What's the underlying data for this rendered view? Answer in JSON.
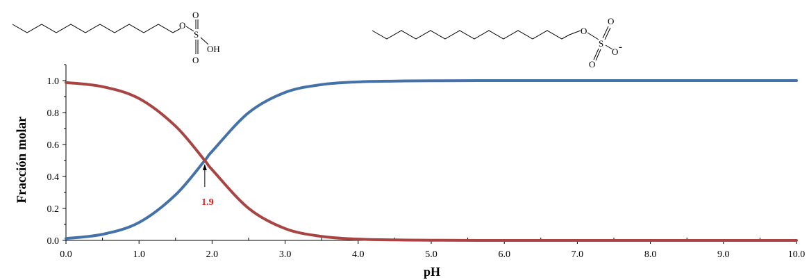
{
  "chart_data": {
    "type": "line",
    "xlabel": "pH",
    "ylabel": "Fracción molar",
    "xlim": [
      0,
      10
    ],
    "ylim": [
      0,
      1.1
    ],
    "x_ticks": [
      "0.0",
      "1.0",
      "2.0",
      "3.0",
      "4.0",
      "5.0",
      "6.0",
      "7.0",
      "8.0",
      "9.0",
      "10.0"
    ],
    "y_ticks": [
      "0.0",
      "0.2",
      "0.4",
      "0.6",
      "0.8",
      "1.0"
    ],
    "pKa": 1.9,
    "grid": false,
    "series": [
      {
        "color": "#4472a8",
        "x": [
          0.0,
          0.5,
          1.0,
          1.5,
          1.9,
          2.0,
          2.5,
          3.0,
          3.5,
          4.0,
          4.5,
          5.0,
          6.0,
          7.0,
          8.0,
          9.0,
          10.0
        ],
        "values": [
          0.012,
          0.038,
          0.112,
          0.285,
          0.5,
          0.557,
          0.799,
          0.926,
          0.975,
          0.992,
          0.997,
          0.999,
          1.0,
          1.0,
          1.0,
          1.0,
          1.0
        ]
      },
      {
        "color": "#a84543",
        "x": [
          0.0,
          0.5,
          1.0,
          1.5,
          1.9,
          2.0,
          2.5,
          3.0,
          3.5,
          4.0,
          4.5,
          5.0,
          6.0,
          7.0,
          8.0,
          9.0,
          10.0
        ],
        "values": [
          0.988,
          0.962,
          0.888,
          0.715,
          0.5,
          0.443,
          0.201,
          0.074,
          0.025,
          0.008,
          0.003,
          0.001,
          0.0,
          0.0,
          0.0,
          0.0,
          0.0
        ]
      }
    ],
    "annotation": {
      "text": "1.9",
      "x": 1.9,
      "y": 0.5,
      "color": "#e0191b"
    }
  },
  "molecules": {
    "acid": {
      "o_ester": "O",
      "s": "S",
      "o_top": "O",
      "o_bottom": "O",
      "oh": "OH"
    },
    "anion": {
      "o_ester": "O",
      "s": "S",
      "o_top": "O",
      "o_bottom": "O",
      "o_minus": "O",
      "charge": "-"
    }
  }
}
